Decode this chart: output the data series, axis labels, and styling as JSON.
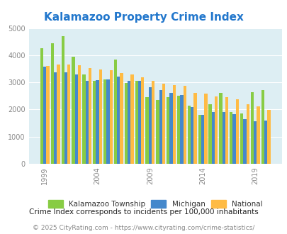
{
  "title": "Kalamazoo Property Crime Index",
  "subtitle": "Crime Index corresponds to incidents per 100,000 inhabitants",
  "copyright": "© 2025 CityRating.com - https://www.cityrating.com/crime-statistics/",
  "years": [
    1999,
    2000,
    2001,
    2002,
    2003,
    2004,
    2005,
    2006,
    2007,
    2008,
    2009,
    2010,
    2011,
    2012,
    2013,
    2014,
    2015,
    2016,
    2017,
    2018,
    2019,
    2020
  ],
  "kalamazoo": [
    4250,
    4450,
    4700,
    3950,
    3300,
    3050,
    3100,
    3850,
    2980,
    3050,
    2450,
    2340,
    2450,
    2500,
    2150,
    1800,
    2200,
    2600,
    1920,
    1850,
    2650,
    2720
  ],
  "michigan": [
    3570,
    3360,
    3380,
    3300,
    3060,
    3080,
    3100,
    3220,
    3060,
    3050,
    2830,
    2710,
    2610,
    2540,
    2080,
    1810,
    1920,
    1920,
    1840,
    1640,
    1580,
    1590
  ],
  "national": [
    3610,
    3660,
    3650,
    3620,
    3520,
    3480,
    3450,
    3340,
    3300,
    3200,
    3050,
    2950,
    2900,
    2870,
    2620,
    2590,
    2490,
    2460,
    2370,
    2200,
    2120,
    1990
  ],
  "colors": {
    "kalamazoo": "#88cc44",
    "michigan": "#4488cc",
    "national": "#ffbb44"
  },
  "bg_color": "#ddeef3",
  "ylim": [
    0,
    5000
  ],
  "yticks": [
    0,
    1000,
    2000,
    3000,
    4000,
    5000
  ],
  "xtick_years": [
    1999,
    2004,
    2009,
    2014,
    2019
  ],
  "legend_labels": [
    "Kalamazoo Township",
    "Michigan",
    "National"
  ],
  "title_color": "#2277cc",
  "subtitle_color": "#222222",
  "copyright_color": "#888888"
}
